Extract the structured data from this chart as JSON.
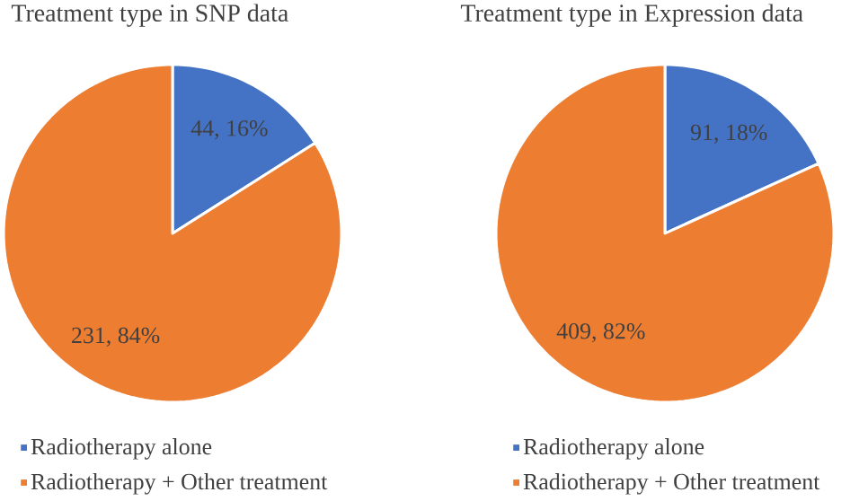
{
  "chart_data": [
    {
      "type": "pie",
      "title": "Treatment type in SNP data",
      "categories": [
        "Radiotherapy alone",
        "Radiotherapy + Other treatment"
      ],
      "values": [
        44,
        231
      ],
      "colors": [
        "#4472c4",
        "#ed7d31"
      ],
      "value_labels": [
        "44, 16%",
        "231, 84%"
      ],
      "legend": "bottom left"
    },
    {
      "type": "pie",
      "title": "Treatment type in Expression data",
      "categories": [
        "Radiotherapy alone",
        "Radiotherapy + Other treatment"
      ],
      "values": [
        91,
        409
      ],
      "colors": [
        "#4472c4",
        "#ed7d31"
      ],
      "value_labels": [
        "91, 18%",
        "409, 82%"
      ],
      "legend": "bottom left"
    }
  ]
}
